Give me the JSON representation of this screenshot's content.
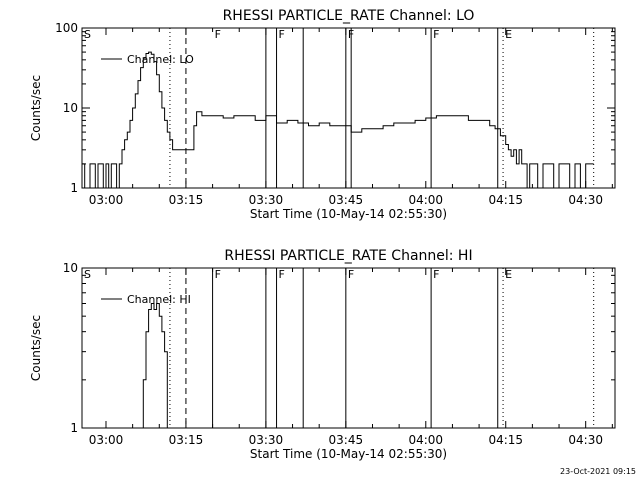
{
  "chart_data": [
    {
      "type": "line",
      "title": "RHESSI PARTICLE_RATE Channel: LO",
      "xlabel": "Start Time (10-May-14 02:55:30)",
      "ylabel": "Counts/sec",
      "yscale": "log",
      "ylim": [
        1,
        100
      ],
      "xlim": [
        "02:55:30",
        "04:35:30"
      ],
      "xticks": [
        "03:00",
        "03:15",
        "03:30",
        "03:45",
        "04:00",
        "04:15",
        "04:30"
      ],
      "yticks": [
        "1",
        "10",
        "100"
      ],
      "legend": {
        "label": "Channel: LO",
        "placement": "top-left"
      },
      "markers": {
        "dotted": [
          "03:12:00",
          "04:14:30",
          "04:31:30"
        ],
        "dashed": [
          "03:15:00"
        ],
        "solid": [
          "03:30:00",
          "03:32:00",
          "03:37:00",
          "03:45:00",
          "03:46:00",
          "04:01:00",
          "04:13:30"
        ]
      },
      "flags": [
        {
          "label": "S",
          "time": "02:55:30"
        },
        {
          "label": "F",
          "time": "03:20:00"
        },
        {
          "label": "F",
          "time": "03:32:00"
        },
        {
          "label": "F",
          "time": "03:45:00"
        },
        {
          "label": "F",
          "time": "04:01:00"
        },
        {
          "label": "E",
          "time": "04:14:30"
        }
      ],
      "series": [
        {
          "x": [
            "02:55:30",
            "02:56:00",
            "02:57:00",
            "02:57:30",
            "02:58:00",
            "02:58:30",
            "02:59:00",
            "02:59:30",
            "03:00:00",
            "03:00:30",
            "03:01:00",
            "03:01:30",
            "03:02:00",
            "03:02:30",
            "03:03:00",
            "03:03:30",
            "03:04:00",
            "03:04:30",
            "03:05:00",
            "03:05:30",
            "03:06:00",
            "03:06:30",
            "03:07:00",
            "03:07:30",
            "03:08:00",
            "03:08:30",
            "03:09:00",
            "03:09:30",
            "03:10:00",
            "03:10:30",
            "03:11:00",
            "03:11:30",
            "03:12:00",
            "03:12:30",
            "03:13:00",
            "03:13:30",
            "03:14:00",
            "03:14:30",
            "03:15:00",
            "03:15:30",
            "03:16:00",
            "03:16:30",
            "03:17:00",
            "03:18:00",
            "03:19:00",
            "03:20:00",
            "03:22:00",
            "03:24:00",
            "03:26:00",
            "03:28:00",
            "03:30:00",
            "03:32:00",
            "03:34:00",
            "03:36:00",
            "03:38:00",
            "03:40:00",
            "03:42:00",
            "03:44:00",
            "03:46:00",
            "03:48:00",
            "03:50:00",
            "03:52:00",
            "03:54:00",
            "03:56:00",
            "03:58:00",
            "04:00:00",
            "04:02:00",
            "04:04:00",
            "04:06:00",
            "04:08:00",
            "04:10:00",
            "04:12:00",
            "04:13:00",
            "04:14:00",
            "04:15:00",
            "04:15:30",
            "04:16:00",
            "04:16:30",
            "04:17:00",
            "04:17:30",
            "04:18:00",
            "04:18:30",
            "04:19:00",
            "04:19:30",
            "04:20:00",
            "04:21:00",
            "04:22:00",
            "04:23:00",
            "04:24:00",
            "04:25:00",
            "04:26:00",
            "04:27:00",
            "04:28:00",
            "04:29:00",
            "04:30:00",
            "04:31:00"
          ],
          "values": [
            2,
            1,
            2,
            2,
            1,
            2,
            2,
            1,
            2,
            1,
            2,
            2,
            1,
            2,
            3,
            4,
            5,
            7,
            10,
            15,
            22,
            32,
            42,
            48,
            50,
            47,
            38,
            26,
            16,
            10,
            7,
            5,
            4,
            3,
            3,
            3,
            3,
            3,
            3,
            3,
            3,
            6,
            9,
            8,
            8,
            8,
            7.5,
            8,
            8,
            7,
            8,
            6.5,
            7,
            6.5,
            6,
            6.5,
            6,
            6,
            5,
            5.5,
            5.5,
            6,
            6.5,
            6.5,
            7,
            7.5,
            8,
            8,
            8,
            7,
            7,
            6,
            5.5,
            4.5,
            3.5,
            3,
            2.5,
            3,
            2,
            3,
            2,
            2,
            1,
            2,
            2,
            1,
            2,
            2,
            1,
            2,
            2,
            1,
            2,
            1,
            2,
            2
          ]
        }
      ]
    },
    {
      "type": "line",
      "title": "RHESSI PARTICLE_RATE Channel: HI",
      "xlabel": "Start Time (10-May-14 02:55:30)",
      "ylabel": "Counts/sec",
      "yscale": "log",
      "ylim": [
        1,
        10
      ],
      "xlim": [
        "02:55:30",
        "04:35:30"
      ],
      "xticks": [
        "03:00",
        "03:15",
        "03:30",
        "03:45",
        "04:00",
        "04:15",
        "04:30"
      ],
      "yticks": [
        "1",
        "10"
      ],
      "legend": {
        "label": "Channel: HI",
        "placement": "top-left"
      },
      "markers": {
        "dotted": [
          "03:12:00",
          "04:14:30",
          "04:31:30"
        ],
        "dashed": [
          "03:15:00"
        ],
        "solid": [
          "03:20:00",
          "03:30:00",
          "03:32:00",
          "03:37:00",
          "03:45:00",
          "04:01:00",
          "04:13:30"
        ]
      },
      "flags": [
        {
          "label": "S",
          "time": "02:55:30"
        },
        {
          "label": "F",
          "time": "03:20:00"
        },
        {
          "label": "F",
          "time": "03:32:00"
        },
        {
          "label": "F",
          "time": "03:45:00"
        },
        {
          "label": "F",
          "time": "04:01:00"
        },
        {
          "label": "E",
          "time": "04:14:30"
        }
      ],
      "series": [
        {
          "x": [
            "03:06:30",
            "03:07:00",
            "03:07:30",
            "03:08:00",
            "03:08:30",
            "03:09:00",
            "03:09:30",
            "03:10:00",
            "03:10:30",
            "03:11:00",
            "03:11:30"
          ],
          "values": [
            1,
            2,
            4,
            5.5,
            6,
            5.5,
            6,
            5,
            4,
            3,
            1
          ]
        }
      ]
    }
  ],
  "footer": {
    "timestamp": "23-Oct-2021 09:15"
  }
}
